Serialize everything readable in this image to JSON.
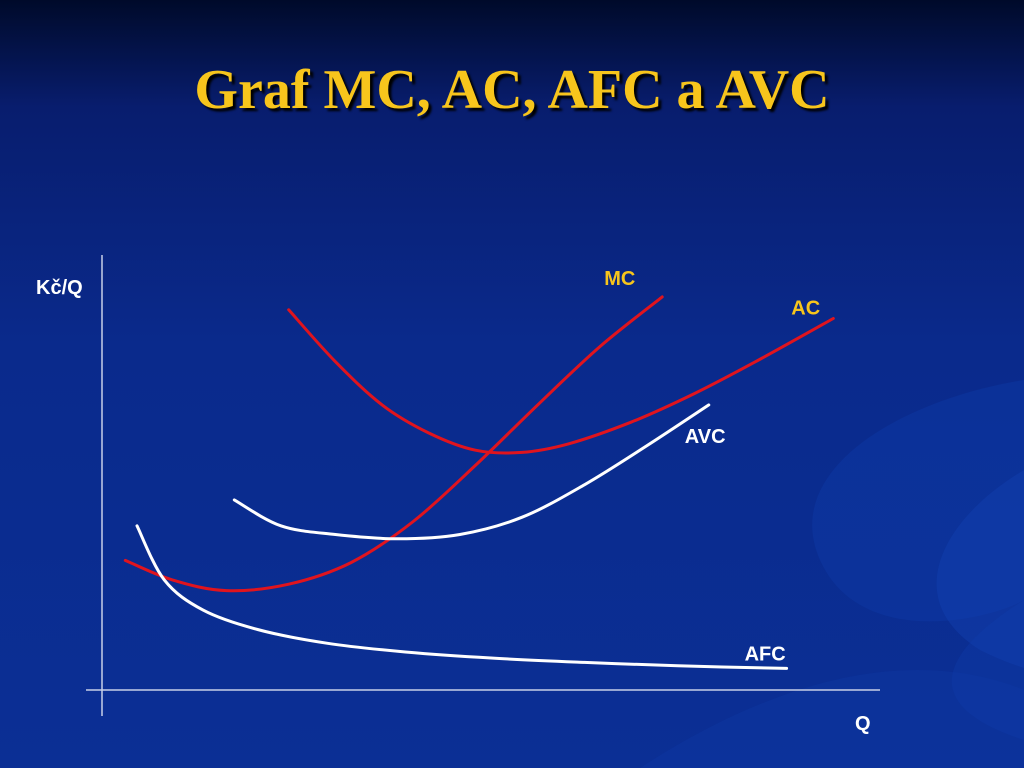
{
  "slide": {
    "title": "Graf MC, AC, AFC a AVC"
  },
  "colors": {
    "background": "#0a2a8c",
    "title": "#f7c51c",
    "axis": "#c8cfe8",
    "red_curve": "#e0141e",
    "white_curve": "#ffffff",
    "red_label": "#f7c51c",
    "white_label": "#ffffff"
  },
  "chart_data": {
    "type": "line",
    "title": "Graf MC, AC, AFC a AVC",
    "xlabel": "Q",
    "ylabel": "Kč/Q",
    "xlim": [
      0,
      10
    ],
    "ylim": [
      0,
      10
    ],
    "grid": false,
    "legend": "inline-labels",
    "series": [
      {
        "name": "MC",
        "color": "#e0141e",
        "label_color": "#f7c51c",
        "x": [
          0.3,
          0.9,
          1.6,
          2.4,
          3.2,
          4.0,
          4.8,
          5.6,
          6.4,
          7.2
        ],
        "y": [
          3.0,
          2.55,
          2.3,
          2.45,
          2.95,
          3.9,
          5.2,
          6.6,
          7.95,
          9.1
        ]
      },
      {
        "name": "AC",
        "color": "#e0141e",
        "label_color": "#f7c51c",
        "x": [
          2.4,
          3.0,
          3.6,
          4.2,
          4.8,
          5.4,
          6.0,
          6.8,
          7.6,
          8.4,
          9.4
        ],
        "y": [
          8.8,
          7.6,
          6.6,
          5.95,
          5.55,
          5.5,
          5.7,
          6.2,
          6.85,
          7.6,
          8.6
        ]
      },
      {
        "name": "AVC",
        "color": "#ffffff",
        "label_color": "#ffffff",
        "x": [
          1.7,
          2.3,
          3.0,
          3.8,
          4.6,
          5.4,
          6.2,
          7.0,
          7.8
        ],
        "y": [
          4.4,
          3.8,
          3.6,
          3.5,
          3.6,
          4.0,
          4.75,
          5.65,
          6.6
        ]
      },
      {
        "name": "AFC",
        "color": "#ffffff",
        "label_color": "#ffffff",
        "x": [
          0.45,
          0.8,
          1.3,
          2.0,
          2.9,
          3.9,
          5.0,
          6.2,
          7.4,
          8.8
        ],
        "y": [
          3.8,
          2.55,
          1.85,
          1.4,
          1.08,
          0.88,
          0.74,
          0.64,
          0.56,
          0.5
        ]
      }
    ]
  }
}
